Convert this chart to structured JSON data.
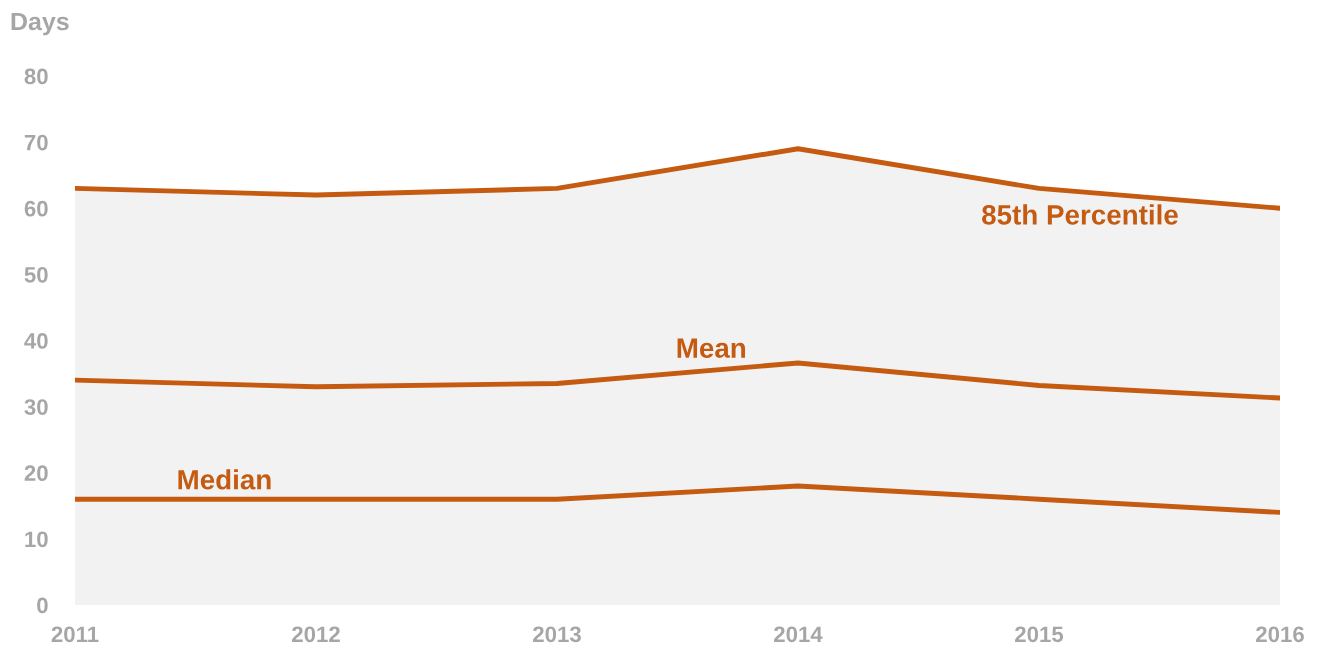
{
  "chart_data": {
    "type": "line",
    "ylabel": "Days",
    "categories": [
      "2011",
      "2012",
      "2013",
      "2014",
      "2015",
      "2016"
    ],
    "series": [
      {
        "name": "Median",
        "color": "#c55a11",
        "values": [
          16,
          16,
          16,
          18,
          16,
          14
        ]
      },
      {
        "name": "Mean",
        "color": "#c55a11",
        "values": [
          34,
          33,
          33.5,
          36.6,
          33.2,
          31.3
        ]
      },
      {
        "name": "85th Percentile",
        "type": "area",
        "color": "#c55a11",
        "values": [
          63,
          62,
          63,
          69,
          63,
          60
        ]
      }
    ],
    "ylim": [
      0,
      80
    ],
    "yticks": [
      0,
      10,
      20,
      30,
      40,
      50,
      60,
      70,
      80
    ]
  }
}
